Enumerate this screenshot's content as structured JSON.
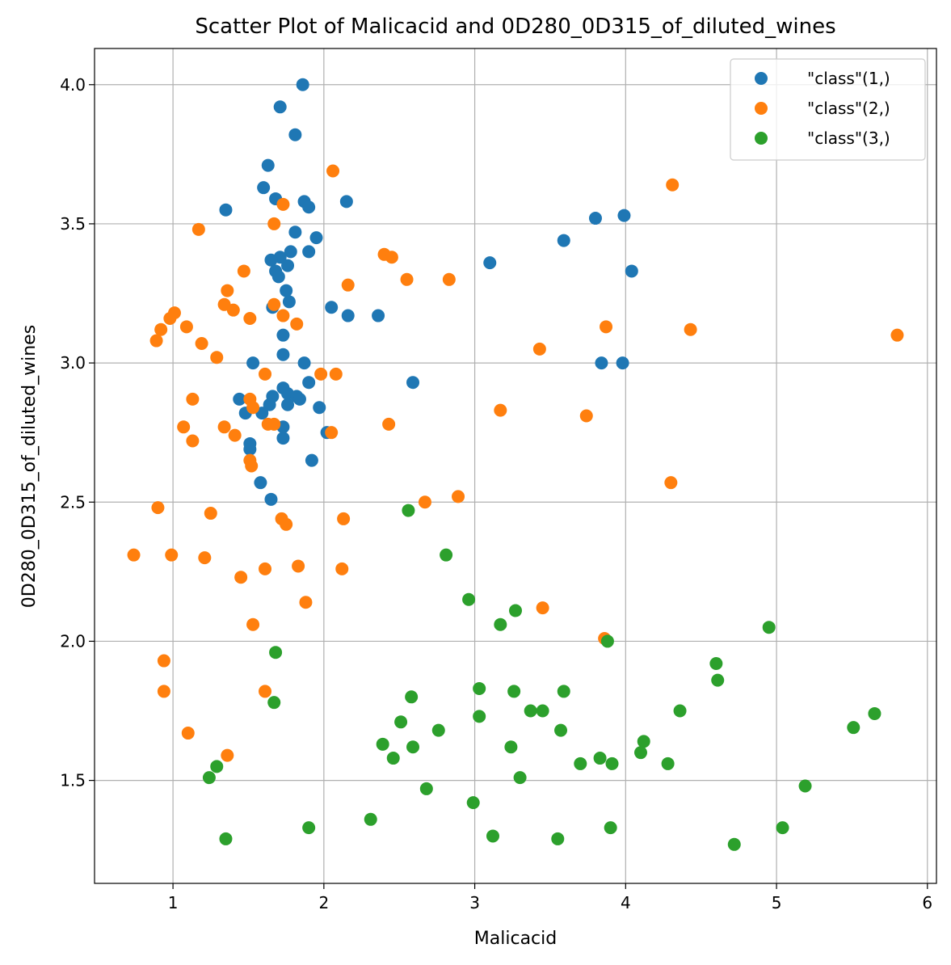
{
  "chart_data": {
    "type": "scatter",
    "title": "Scatter Plot of Malicacid and 0D280_0D315_of_diluted_wines",
    "xlabel": "Malicacid",
    "ylabel": "0D280_0D315_of_diluted_wines",
    "xlim": [
      0.48,
      6.06
    ],
    "ylim": [
      1.13,
      4.13
    ],
    "xticks": [
      "1",
      "2",
      "3",
      "4",
      "5",
      "6"
    ],
    "yticks": [
      "1.5",
      "2.0",
      "2.5",
      "3.0",
      "3.5",
      "4.0"
    ],
    "grid": true,
    "legend_position": "top-right",
    "series": [
      {
        "name": "\"class\"(1,)",
        "color": "#1f77b4",
        "points": [
          [
            1.86,
            4.0
          ],
          [
            1.71,
            3.92
          ],
          [
            1.81,
            3.82
          ],
          [
            1.63,
            3.71
          ],
          [
            1.6,
            3.63
          ],
          [
            1.68,
            3.59
          ],
          [
            1.87,
            3.58
          ],
          [
            1.9,
            3.56
          ],
          [
            2.15,
            3.58
          ],
          [
            1.35,
            3.55
          ],
          [
            1.81,
            3.47
          ],
          [
            1.95,
            3.45
          ],
          [
            1.78,
            3.4
          ],
          [
            1.9,
            3.4
          ],
          [
            1.71,
            3.38
          ],
          [
            1.65,
            3.37
          ],
          [
            1.76,
            3.35
          ],
          [
            1.68,
            3.33
          ],
          [
            1.7,
            3.31
          ],
          [
            1.75,
            3.26
          ],
          [
            1.66,
            3.2
          ],
          [
            1.77,
            3.22
          ],
          [
            2.05,
            3.2
          ],
          [
            2.16,
            3.17
          ],
          [
            2.36,
            3.17
          ],
          [
            1.73,
            3.1
          ],
          [
            1.73,
            3.03
          ],
          [
            1.53,
            3.0
          ],
          [
            1.87,
            3.0
          ],
          [
            2.59,
            2.93
          ],
          [
            1.9,
            2.93
          ],
          [
            1.73,
            2.91
          ],
          [
            1.76,
            2.89
          ],
          [
            1.66,
            2.88
          ],
          [
            1.82,
            2.88
          ],
          [
            1.84,
            2.87
          ],
          [
            1.44,
            2.87
          ],
          [
            1.76,
            2.85
          ],
          [
            1.64,
            2.85
          ],
          [
            1.97,
            2.84
          ],
          [
            1.59,
            2.82
          ],
          [
            1.48,
            2.82
          ],
          [
            1.73,
            2.77
          ],
          [
            2.02,
            2.75
          ],
          [
            1.73,
            2.73
          ],
          [
            1.51,
            2.71
          ],
          [
            1.51,
            2.69
          ],
          [
            1.92,
            2.65
          ],
          [
            1.58,
            2.57
          ],
          [
            1.65,
            2.51
          ],
          [
            3.1,
            3.36
          ],
          [
            3.59,
            3.44
          ],
          [
            3.8,
            3.52
          ],
          [
            3.99,
            3.53
          ],
          [
            4.04,
            3.33
          ],
          [
            3.84,
            3.0
          ],
          [
            3.98,
            3.0
          ]
        ]
      },
      {
        "name": "\"class\"(2,)",
        "color": "#ff7f0e",
        "points": [
          [
            2.06,
            3.69
          ],
          [
            4.31,
            3.64
          ],
          [
            1.73,
            3.57
          ],
          [
            1.67,
            3.5
          ],
          [
            1.17,
            3.48
          ],
          [
            2.4,
            3.39
          ],
          [
            2.45,
            3.38
          ],
          [
            1.47,
            3.33
          ],
          [
            2.55,
            3.3
          ],
          [
            2.83,
            3.3
          ],
          [
            2.16,
            3.28
          ],
          [
            1.36,
            3.26
          ],
          [
            1.34,
            3.21
          ],
          [
            1.67,
            3.21
          ],
          [
            1.4,
            3.19
          ],
          [
            1.01,
            3.18
          ],
          [
            0.98,
            3.16
          ],
          [
            1.51,
            3.16
          ],
          [
            1.73,
            3.17
          ],
          [
            1.82,
            3.14
          ],
          [
            3.87,
            3.13
          ],
          [
            1.09,
            3.13
          ],
          [
            0.92,
            3.12
          ],
          [
            4.43,
            3.12
          ],
          [
            5.8,
            3.1
          ],
          [
            0.89,
            3.08
          ],
          [
            1.19,
            3.07
          ],
          [
            3.43,
            3.05
          ],
          [
            1.29,
            3.02
          ],
          [
            1.61,
            2.96
          ],
          [
            1.98,
            2.96
          ],
          [
            2.08,
            2.96
          ],
          [
            1.13,
            2.87
          ],
          [
            1.51,
            2.87
          ],
          [
            1.53,
            2.84
          ],
          [
            3.17,
            2.83
          ],
          [
            3.74,
            2.81
          ],
          [
            1.63,
            2.78
          ],
          [
            1.67,
            2.78
          ],
          [
            2.43,
            2.78
          ],
          [
            1.07,
            2.77
          ],
          [
            1.34,
            2.77
          ],
          [
            2.05,
            2.75
          ],
          [
            1.41,
            2.74
          ],
          [
            1.13,
            2.72
          ],
          [
            1.51,
            2.65
          ],
          [
            1.52,
            2.63
          ],
          [
            4.3,
            2.57
          ],
          [
            2.89,
            2.52
          ],
          [
            2.67,
            2.5
          ],
          [
            0.9,
            2.48
          ],
          [
            1.25,
            2.46
          ],
          [
            2.13,
            2.44
          ],
          [
            1.72,
            2.44
          ],
          [
            1.75,
            2.42
          ],
          [
            0.74,
            2.31
          ],
          [
            0.99,
            2.31
          ],
          [
            1.21,
            2.3
          ],
          [
            1.83,
            2.27
          ],
          [
            1.61,
            2.26
          ],
          [
            2.12,
            2.26
          ],
          [
            1.45,
            2.23
          ],
          [
            1.88,
            2.14
          ],
          [
            3.45,
            2.12
          ],
          [
            1.53,
            2.06
          ],
          [
            3.86,
            2.01
          ],
          [
            0.94,
            1.93
          ],
          [
            0.94,
            1.82
          ],
          [
            1.61,
            1.82
          ],
          [
            1.1,
            1.67
          ],
          [
            1.36,
            1.59
          ]
        ]
      },
      {
        "name": "\"class\"(3,)",
        "color": "#2ca02c",
        "points": [
          [
            2.56,
            2.47
          ],
          [
            2.81,
            2.31
          ],
          [
            2.96,
            2.15
          ],
          [
            3.27,
            2.11
          ],
          [
            3.17,
            2.06
          ],
          [
            4.95,
            2.05
          ],
          [
            3.88,
            2.0
          ],
          [
            1.68,
            1.96
          ],
          [
            4.6,
            1.92
          ],
          [
            4.61,
            1.86
          ],
          [
            3.03,
            1.83
          ],
          [
            3.26,
            1.82
          ],
          [
            3.59,
            1.82
          ],
          [
            2.58,
            1.8
          ],
          [
            1.67,
            1.78
          ],
          [
            3.37,
            1.75
          ],
          [
            3.45,
            1.75
          ],
          [
            4.36,
            1.75
          ],
          [
            5.65,
            1.74
          ],
          [
            3.03,
            1.73
          ],
          [
            2.51,
            1.71
          ],
          [
            5.51,
            1.69
          ],
          [
            2.76,
            1.68
          ],
          [
            3.57,
            1.68
          ],
          [
            4.12,
            1.64
          ],
          [
            2.39,
            1.63
          ],
          [
            2.59,
            1.62
          ],
          [
            3.24,
            1.62
          ],
          [
            4.1,
            1.6
          ],
          [
            2.46,
            1.58
          ],
          [
            3.83,
            1.58
          ],
          [
            3.7,
            1.56
          ],
          [
            3.91,
            1.56
          ],
          [
            4.28,
            1.56
          ],
          [
            1.29,
            1.55
          ],
          [
            1.24,
            1.51
          ],
          [
            3.3,
            1.51
          ],
          [
            5.19,
            1.48
          ],
          [
            2.68,
            1.47
          ],
          [
            2.99,
            1.42
          ],
          [
            2.31,
            1.36
          ],
          [
            1.9,
            1.33
          ],
          [
            3.9,
            1.33
          ],
          [
            5.04,
            1.33
          ],
          [
            3.12,
            1.3
          ],
          [
            1.35,
            1.29
          ],
          [
            3.55,
            1.29
          ],
          [
            4.72,
            1.27
          ]
        ]
      }
    ]
  }
}
